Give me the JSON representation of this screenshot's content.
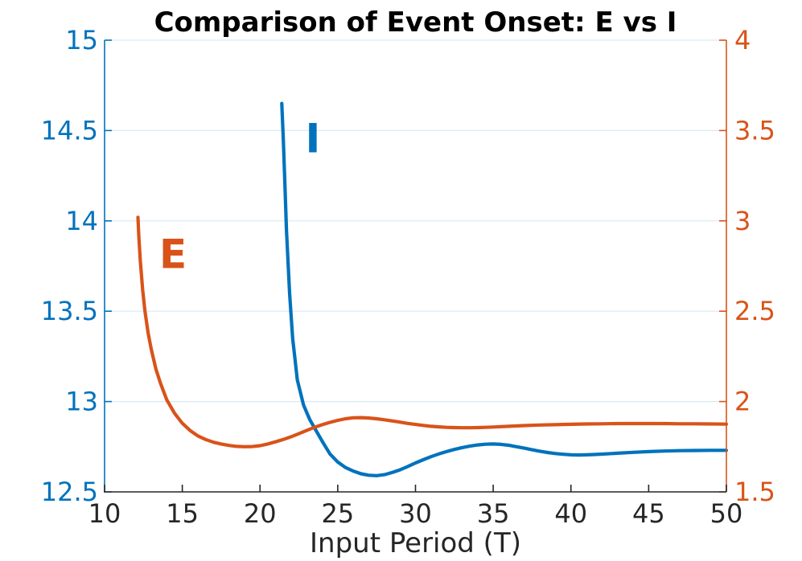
{
  "colors": {
    "background": "#ffffff",
    "title": "#000000",
    "axis": "#262626",
    "grid": "rgba(0,114,189,0.15)",
    "left_accent": "#0072BD",
    "right_accent": "#D95319"
  },
  "chart_data": {
    "type": "line",
    "title": "Comparison of Event Onset: E vs I",
    "xlabel": "Input Period (T)",
    "ylabel_left": "",
    "ylabel_right": "",
    "grid": {
      "horizontal": true,
      "vertical": false
    },
    "legend_position": "none",
    "xlim": [
      10,
      50
    ],
    "x_ticks": [
      10,
      15,
      20,
      25,
      30,
      35,
      40,
      45,
      50
    ],
    "left_axis": {
      "lim": [
        12.5,
        15
      ],
      "ticks": [
        12.5,
        13,
        13.5,
        14,
        14.5,
        15
      ],
      "color": "#0072BD"
    },
    "right_axis": {
      "lim": [
        1.5,
        4
      ],
      "ticks": [
        1.5,
        2,
        2.5,
        3,
        3.5,
        4
      ],
      "color": "#D95319"
    },
    "series": [
      {
        "name": "I",
        "axis": "left",
        "color": "#0072BD",
        "label": "I",
        "label_pos": {
          "x": 23.4,
          "y": 14.46
        },
        "points": [
          [
            21.4,
            14.65
          ],
          [
            21.5,
            14.45
          ],
          [
            21.6,
            14.2
          ],
          [
            21.7,
            13.95
          ],
          [
            21.9,
            13.6
          ],
          [
            22.1,
            13.35
          ],
          [
            22.4,
            13.12
          ],
          [
            22.8,
            12.98
          ],
          [
            23.2,
            12.9
          ],
          [
            23.6,
            12.84
          ],
          [
            24.0,
            12.78
          ],
          [
            24.5,
            12.71
          ],
          [
            25.0,
            12.665
          ],
          [
            25.5,
            12.635
          ],
          [
            26.0,
            12.615
          ],
          [
            26.5,
            12.6
          ],
          [
            27.0,
            12.592
          ],
          [
            27.5,
            12.59
          ],
          [
            28.0,
            12.595
          ],
          [
            28.5,
            12.607
          ],
          [
            29.0,
            12.622
          ],
          [
            29.5,
            12.64
          ],
          [
            30.0,
            12.66
          ],
          [
            30.5,
            12.678
          ],
          [
            31.0,
            12.695
          ],
          [
            31.5,
            12.71
          ],
          [
            32.0,
            12.723
          ],
          [
            32.5,
            12.735
          ],
          [
            33.0,
            12.745
          ],
          [
            33.5,
            12.753
          ],
          [
            34.0,
            12.76
          ],
          [
            34.5,
            12.764
          ],
          [
            35.0,
            12.765
          ],
          [
            35.5,
            12.763
          ],
          [
            36.0,
            12.758
          ],
          [
            36.5,
            12.75
          ],
          [
            37.0,
            12.742
          ],
          [
            37.5,
            12.733
          ],
          [
            38.0,
            12.725
          ],
          [
            38.5,
            12.718
          ],
          [
            39.0,
            12.712
          ],
          [
            39.5,
            12.708
          ],
          [
            40.0,
            12.705
          ],
          [
            40.5,
            12.704
          ],
          [
            41.0,
            12.705
          ],
          [
            41.5,
            12.707
          ],
          [
            42.0,
            12.709
          ],
          [
            43.0,
            12.714
          ],
          [
            44.0,
            12.719
          ],
          [
            45.0,
            12.723
          ],
          [
            46.0,
            12.726
          ],
          [
            47.0,
            12.728
          ],
          [
            48.0,
            12.729
          ],
          [
            49.0,
            12.73
          ],
          [
            50.0,
            12.73
          ]
        ]
      },
      {
        "name": "E",
        "axis": "right",
        "color": "#D95319",
        "label": "E",
        "label_pos": {
          "x": 14.4,
          "y": 2.82
        },
        "points": [
          [
            12.15,
            3.02
          ],
          [
            12.2,
            2.92
          ],
          [
            12.3,
            2.78
          ],
          [
            12.45,
            2.62
          ],
          [
            12.6,
            2.5
          ],
          [
            12.8,
            2.38
          ],
          [
            13.0,
            2.29
          ],
          [
            13.3,
            2.18
          ],
          [
            13.6,
            2.1
          ],
          [
            14.0,
            2.01
          ],
          [
            14.5,
            1.935
          ],
          [
            15.0,
            1.88
          ],
          [
            15.5,
            1.84
          ],
          [
            16.0,
            1.81
          ],
          [
            16.5,
            1.79
          ],
          [
            17.0,
            1.775
          ],
          [
            17.5,
            1.765
          ],
          [
            18.0,
            1.757
          ],
          [
            18.5,
            1.752
          ],
          [
            19.0,
            1.75
          ],
          [
            19.5,
            1.751
          ],
          [
            20.0,
            1.756
          ],
          [
            20.5,
            1.765
          ],
          [
            21.0,
            1.777
          ],
          [
            21.5,
            1.79
          ],
          [
            22.0,
            1.805
          ],
          [
            22.5,
            1.822
          ],
          [
            23.0,
            1.84
          ],
          [
            23.5,
            1.857
          ],
          [
            24.0,
            1.872
          ],
          [
            24.5,
            1.885
          ],
          [
            25.0,
            1.896
          ],
          [
            25.5,
            1.905
          ],
          [
            26.0,
            1.91
          ],
          [
            26.5,
            1.911
          ],
          [
            27.0,
            1.909
          ],
          [
            27.5,
            1.905
          ],
          [
            28.0,
            1.899
          ],
          [
            28.5,
            1.893
          ],
          [
            29.0,
            1.886
          ],
          [
            29.5,
            1.879
          ],
          [
            30.0,
            1.873
          ],
          [
            30.5,
            1.868
          ],
          [
            31.0,
            1.863
          ],
          [
            31.5,
            1.86
          ],
          [
            32.0,
            1.857
          ],
          [
            32.5,
            1.856
          ],
          [
            33.0,
            1.855
          ],
          [
            33.5,
            1.855
          ],
          [
            34.0,
            1.856
          ],
          [
            34.5,
            1.857
          ],
          [
            35.0,
            1.859
          ],
          [
            36.0,
            1.863
          ],
          [
            37.0,
            1.867
          ],
          [
            38.0,
            1.87
          ],
          [
            39.0,
            1.872
          ],
          [
            40.0,
            1.874
          ],
          [
            41.0,
            1.876
          ],
          [
            42.0,
            1.877
          ],
          [
            43.0,
            1.878
          ],
          [
            44.0,
            1.878
          ],
          [
            45.0,
            1.878
          ],
          [
            46.0,
            1.878
          ],
          [
            47.0,
            1.877
          ],
          [
            48.0,
            1.877
          ],
          [
            49.0,
            1.876
          ],
          [
            50.0,
            1.875
          ]
        ]
      }
    ]
  }
}
